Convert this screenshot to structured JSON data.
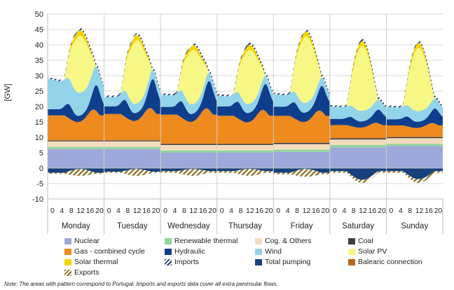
{
  "chart_data": {
    "type": "area",
    "ylabel": "[GW]",
    "ylim": [
      -10,
      50
    ],
    "yticks": [
      -10,
      -5,
      0,
      5,
      10,
      15,
      20,
      25,
      30,
      35,
      40,
      45,
      50
    ],
    "days": [
      "Monday",
      "Tuesday",
      "Wednesday",
      "Thursday",
      "Friday",
      "Saturday",
      "Sunday"
    ],
    "hour_ticks": [
      "0",
      "4",
      "8",
      "12",
      "16",
      "20"
    ],
    "hours_per_day": 24,
    "day_breakdown": [
      {
        "day": "Monday",
        "nuclear": 6.2,
        "renewable_thermal": 0.7,
        "cog_others": 1.8,
        "coal": 0.3,
        "gas_cc": [
          3.5,
          10.0
        ],
        "hydraulic": [
          2.0,
          8.5
        ],
        "wind": [
          10.0,
          5.5
        ],
        "solar_pv": [
          0.0,
          18.5
        ],
        "solar_thermal": [
          0.0,
          1.8
        ],
        "imports": [
          0.5,
          1.0
        ],
        "total_pumping": [
          -1.5,
          -0.3
        ],
        "exports": [
          -1.8,
          -2.5
        ]
      },
      {
        "day": "Tuesday",
        "nuclear": 6.2,
        "renewable_thermal": 0.7,
        "cog_others": 1.8,
        "coal": 0.3,
        "gas_cc": [
          3.8,
          10.5
        ],
        "hydraulic": [
          2.5,
          10.0
        ],
        "wind": [
          3.0,
          3.0
        ],
        "solar_pv": [
          0.0,
          20.5
        ],
        "solar_thermal": [
          0.0,
          1.7
        ],
        "imports": [
          0.5,
          1.0
        ],
        "total_pumping": [
          -1.2,
          -0.3
        ],
        "exports": [
          -1.5,
          -2.5
        ]
      },
      {
        "day": "Wednesday",
        "nuclear": 5.0,
        "renewable_thermal": 0.7,
        "cog_others": 1.8,
        "coal": 0.4,
        "gas_cc": [
          4.5,
          11.5
        ],
        "hydraulic": [
          2.5,
          9.5
        ],
        "wind": [
          4.0,
          2.5
        ],
        "solar_pv": [
          0.0,
          17.5
        ],
        "solar_thermal": [
          0.0,
          1.6
        ],
        "imports": [
          0.5,
          1.0
        ],
        "total_pumping": [
          -1.0,
          -0.3
        ],
        "exports": [
          -1.5,
          -2.5
        ]
      },
      {
        "day": "Thursday",
        "nuclear": 5.0,
        "renewable_thermal": 0.7,
        "cog_others": 1.8,
        "coal": 0.4,
        "gas_cc": [
          4.5,
          11.0
        ],
        "hydraulic": [
          3.0,
          9.0
        ],
        "wind": [
          3.5,
          2.5
        ],
        "solar_pv": [
          0.0,
          17.5
        ],
        "solar_thermal": [
          0.0,
          1.6
        ],
        "imports": [
          0.5,
          1.0
        ],
        "total_pumping": [
          -1.0,
          -0.3
        ],
        "exports": [
          -1.5,
          -2.5
        ]
      },
      {
        "day": "Friday",
        "nuclear": 5.3,
        "renewable_thermal": 0.7,
        "cog_others": 1.8,
        "coal": 0.4,
        "gas_cc": [
          4.5,
          10.5
        ],
        "hydraulic": [
          3.0,
          8.5
        ],
        "wind": [
          4.0,
          2.5
        ],
        "solar_pv": [
          0.0,
          21.5
        ],
        "solar_thermal": [
          0.0,
          1.6
        ],
        "imports": [
          0.5,
          1.0
        ],
        "total_pumping": [
          -1.5,
          -0.3
        ],
        "exports": [
          -2.0,
          -2.8
        ]
      },
      {
        "day": "Saturday",
        "nuclear": 6.8,
        "renewable_thermal": 0.7,
        "cog_others": 1.8,
        "coal": 0.4,
        "gas_cc": [
          2.5,
          5.0
        ],
        "hydraulic": [
          2.0,
          4.5
        ],
        "wind": [
          4.0,
          3.0
        ],
        "solar_pv": [
          0.0,
          21.0
        ],
        "solar_thermal": [
          0.0,
          1.6
        ],
        "imports": [
          0.5,
          1.0
        ],
        "total_pumping": [
          -1.0,
          -3.8
        ],
        "exports": [
          -1.5,
          -4.8
        ]
      },
      {
        "day": "Sunday",
        "nuclear": 7.2,
        "renewable_thermal": 0.7,
        "cog_others": 1.8,
        "coal": 0.4,
        "gas_cc": [
          2.0,
          4.5
        ],
        "hydraulic": [
          2.0,
          5.0
        ],
        "wind": [
          4.0,
          3.0
        ],
        "solar_pv": [
          0.0,
          20.5
        ],
        "solar_thermal": [
          0.0,
          1.6
        ],
        "imports": [
          0.5,
          1.0
        ],
        "total_pumping": [
          -1.0,
          -3.6
        ],
        "exports": [
          -1.5,
          -4.8
        ]
      }
    ],
    "legend": [
      {
        "key": "nuclear",
        "label": "Nuclear",
        "color": "#9fa8da",
        "pattern": false
      },
      {
        "key": "renewable_thermal",
        "label": "Renewable thermal",
        "color": "#8fd49a",
        "pattern": false
      },
      {
        "key": "cog_others",
        "label": "Cog. & Others",
        "color": "#f3dcbe",
        "pattern": false
      },
      {
        "key": "coal",
        "label": "Coal",
        "color": "#404040",
        "pattern": false
      },
      {
        "key": "gas_cc",
        "label": "Gas - combined cycle",
        "color": "#ef8a1e",
        "pattern": false
      },
      {
        "key": "hydraulic",
        "label": "Hydraulic",
        "color": "#0f3f8c",
        "pattern": false
      },
      {
        "key": "wind",
        "label": "Wind",
        "color": "#92d4ea",
        "pattern": false
      },
      {
        "key": "solar_pv",
        "label": "Solar PV",
        "color": "#f7f785",
        "pattern": false
      },
      {
        "key": "solar_thermal",
        "label": "Solar thermal",
        "color": "#f5d400",
        "pattern": false
      },
      {
        "key": "imports",
        "label": "Imports",
        "color": "#2a3f6e",
        "pattern": true
      },
      {
        "key": "total_pumping",
        "label": "Total pumping",
        "color": "#16407e",
        "pattern": false
      },
      {
        "key": "balearic",
        "label": "Balearic connection",
        "color": "#b8651b",
        "pattern": false
      },
      {
        "key": "exports",
        "label": "Exports",
        "color": "#8a6a1c",
        "pattern": true
      }
    ],
    "grid": true,
    "legend_position": "bottom"
  },
  "note": "Note: The areas with pattern correspond to Portugal. Imports and exports data cover all extra peninsular flows."
}
